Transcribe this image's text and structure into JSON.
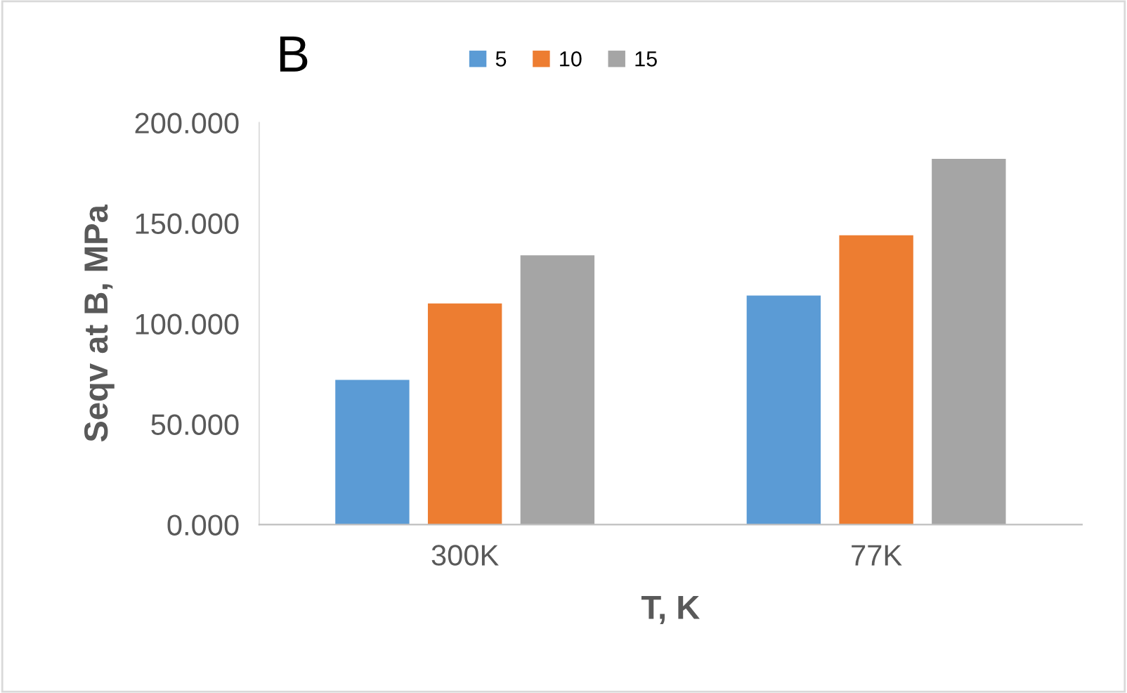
{
  "chart_data": {
    "type": "bar",
    "title": "B",
    "xlabel": "T, K",
    "ylabel": "Seqv at B, MPa",
    "categories": [
      "300K",
      "77K"
    ],
    "series": [
      {
        "name": "5",
        "color": "#5b9bd5",
        "values": [
          72,
          114
        ]
      },
      {
        "name": "10",
        "color": "#ed7d31",
        "values": [
          110,
          144
        ]
      },
      {
        "name": "15",
        "color": "#a5a5a5",
        "values": [
          134,
          182
        ]
      }
    ],
    "ylim": [
      0,
      200
    ],
    "yticks": [
      {
        "value": 0,
        "label": "0.000"
      },
      {
        "value": 50,
        "label": "50.000"
      },
      {
        "value": 100,
        "label": "100.000"
      },
      {
        "value": 150,
        "label": "150.000"
      },
      {
        "value": 200,
        "label": "200.000"
      }
    ],
    "grid": false,
    "legend": "top"
  }
}
